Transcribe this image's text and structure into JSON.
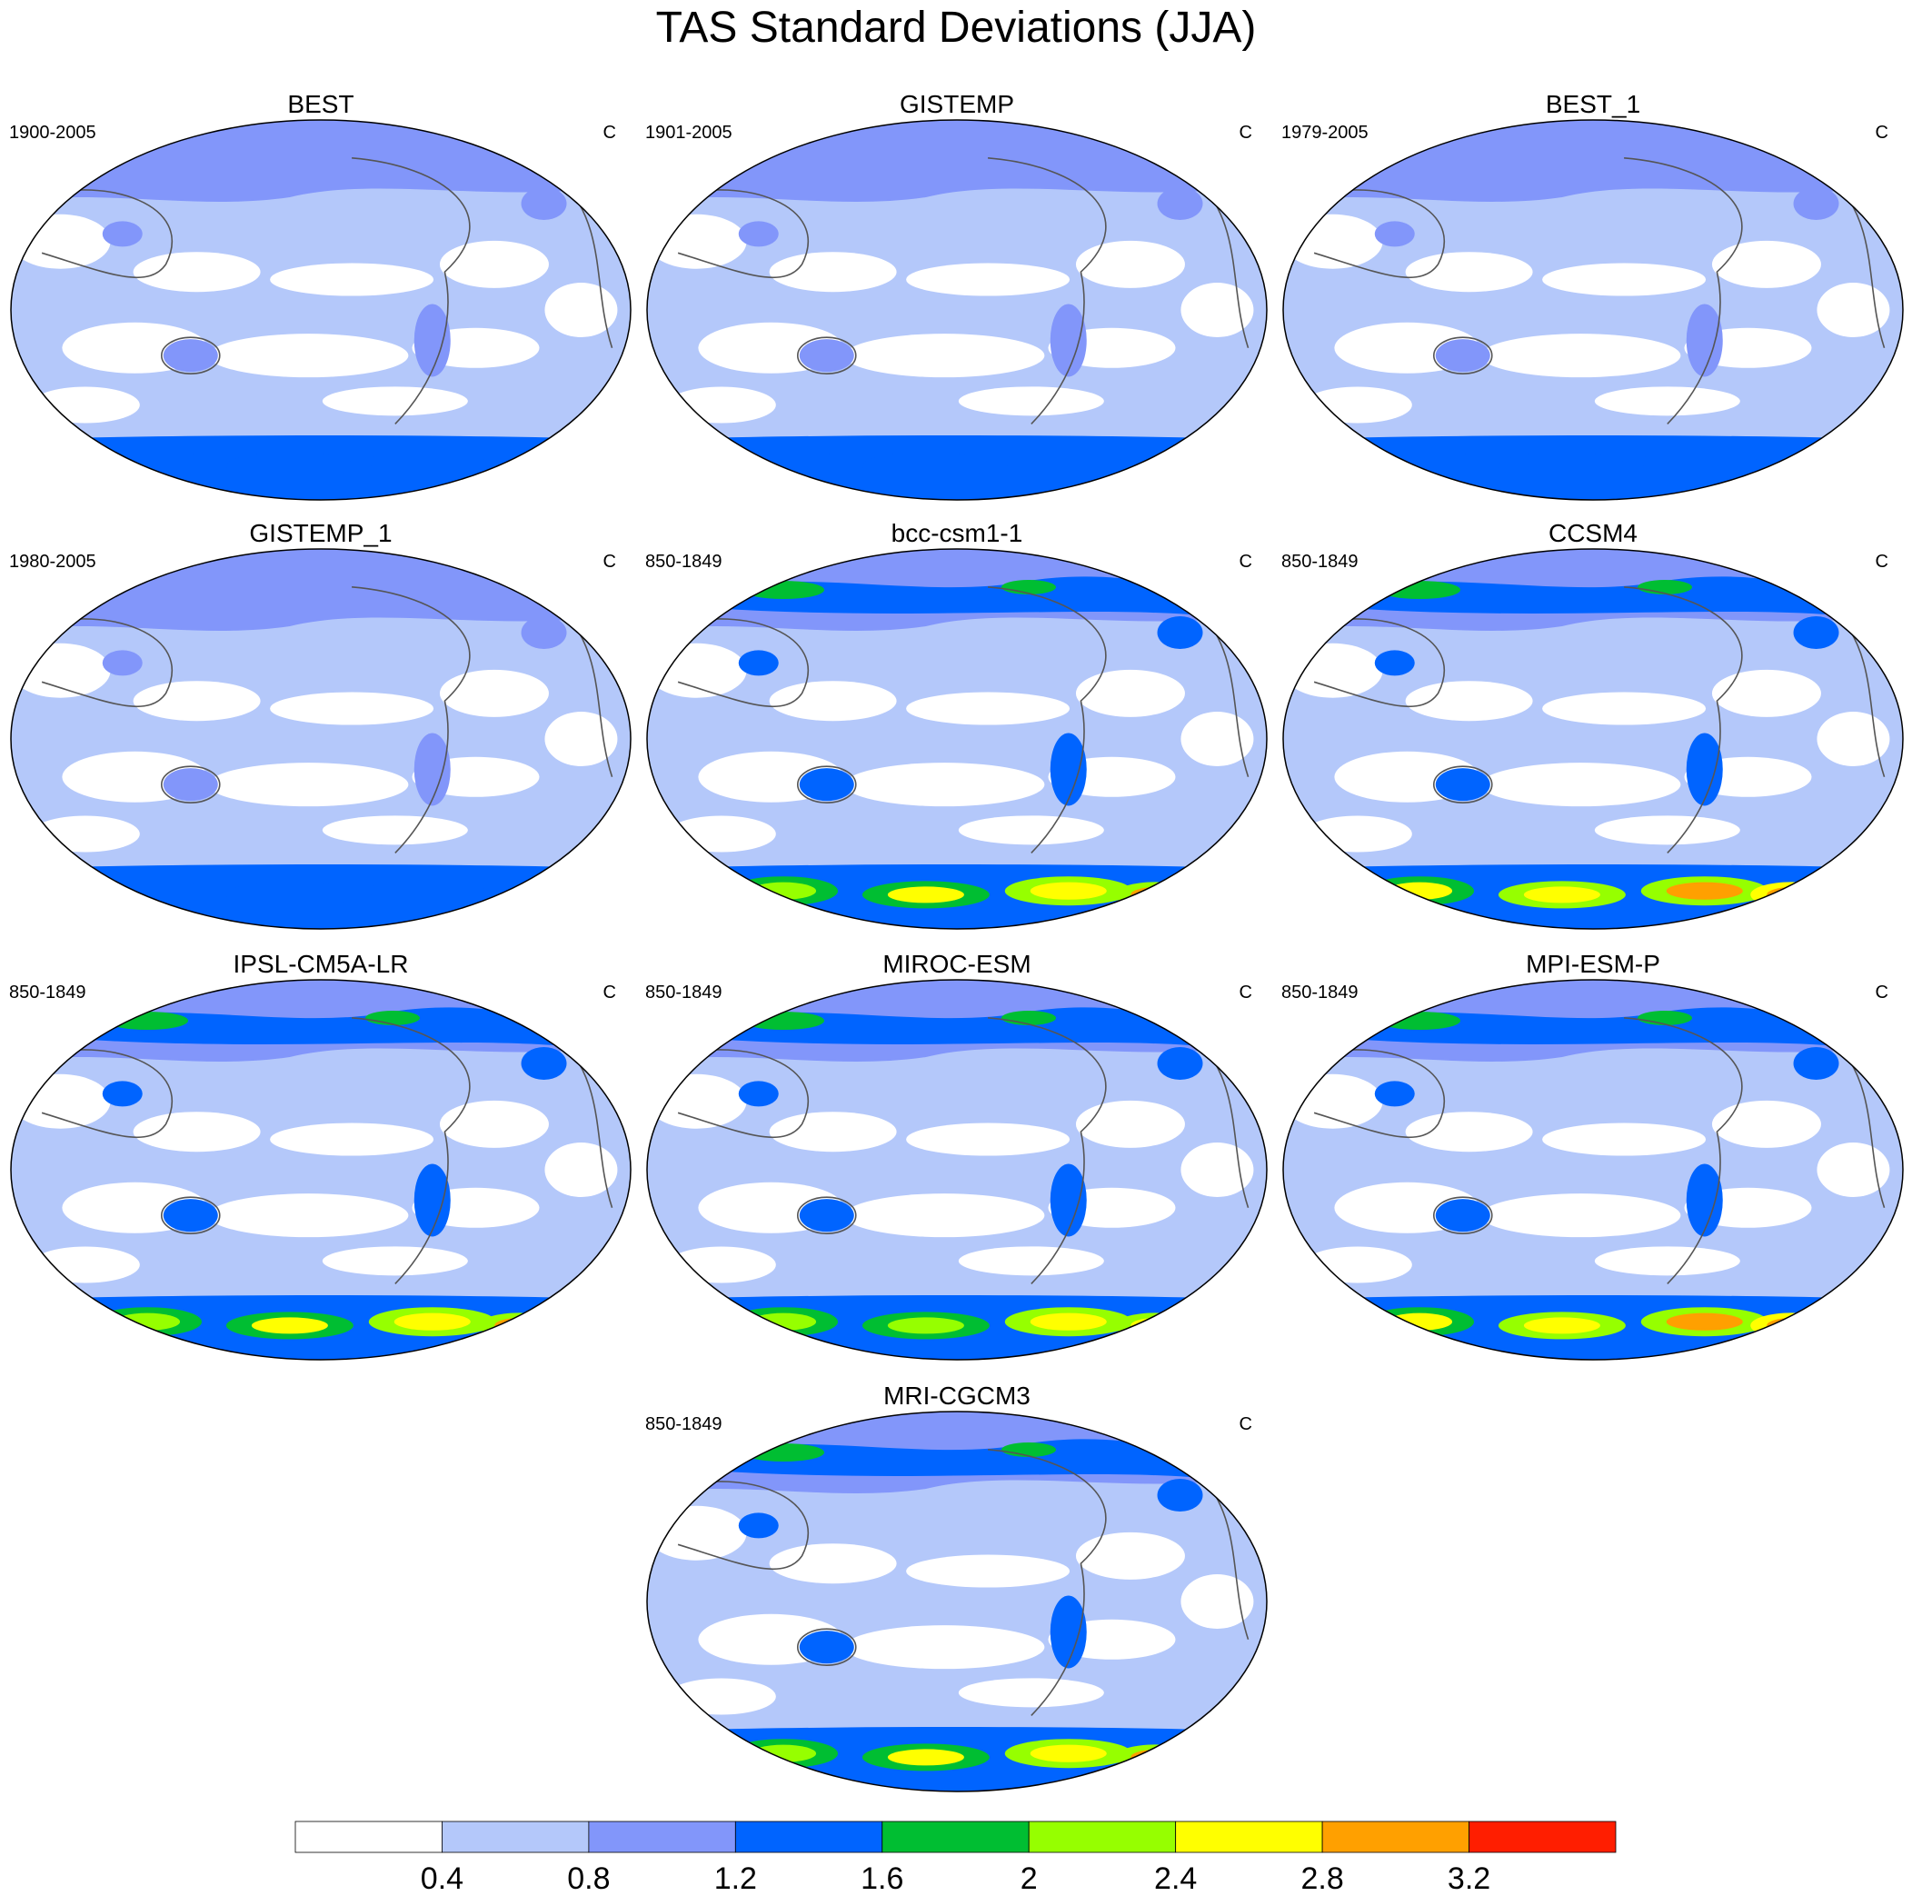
{
  "chart_data": {
    "type": "heatmap",
    "title": "TAS Standard Deviations (JJA)",
    "panels": [
      {
        "name": "BEST",
        "period": "1900-2005",
        "units": "C"
      },
      {
        "name": "GISTEMP",
        "period": "1901-2005",
        "units": "C"
      },
      {
        "name": "BEST_1",
        "period": "1979-2005",
        "units": "C"
      },
      {
        "name": "GISTEMP_1",
        "period": "1980-2005",
        "units": "C"
      },
      {
        "name": "bcc-csm1-1",
        "period": "850-1849",
        "units": "C"
      },
      {
        "name": "CCSM4",
        "period": "850-1849",
        "units": "C"
      },
      {
        "name": "IPSL-CM5A-LR",
        "period": "850-1849",
        "units": "C"
      },
      {
        "name": "MIROC-ESM",
        "period": "850-1849",
        "units": "C"
      },
      {
        "name": "MPI-ESM-P",
        "period": "850-1849",
        "units": "C"
      },
      {
        "name": "MRI-CGCM3",
        "period": "850-1849",
        "units": "C"
      }
    ],
    "colorbar": {
      "levels": [
        "0.4",
        "0.8",
        "1.2",
        "1.6",
        "2",
        "2.4",
        "2.8",
        "3.2"
      ],
      "colors": [
        "#ffffff",
        "#b4c8fa",
        "#8296fa",
        "#0064ff",
        "#00be32",
        "#96ff00",
        "#ffff00",
        "#ffa000",
        "#ff1e00"
      ]
    },
    "south_polar_intensity": [
      1.2,
      1.6,
      1.4,
      1.5,
      3.0,
      3.2,
      3.0,
      2.8,
      3.2,
      2.9
    ]
  }
}
